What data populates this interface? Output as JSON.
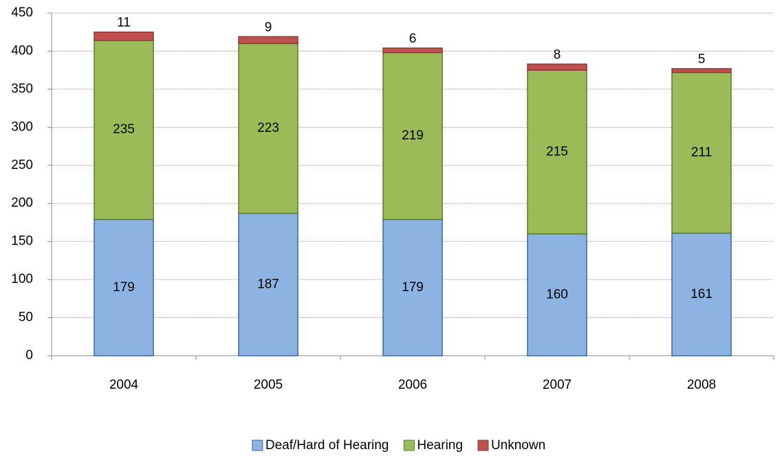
{
  "chart_data": {
    "type": "stacked_bar",
    "categories": [
      "2004",
      "2005",
      "2006",
      "2007",
      "2008"
    ],
    "series": [
      {
        "name": "Deaf/Hard of Hearing",
        "color": "#8db3e2",
        "values": [
          179,
          187,
          179,
          160,
          161
        ]
      },
      {
        "name": "Hearing",
        "color": "#9bbb59",
        "values": [
          235,
          223,
          219,
          215,
          211
        ]
      },
      {
        "name": "Unknown",
        "color": "#c0504d",
        "values": [
          11,
          9,
          6,
          8,
          5
        ]
      }
    ],
    "ylim": [
      0,
      450
    ],
    "yticks": [
      0,
      50,
      100,
      150,
      200,
      250,
      300,
      350,
      400,
      450
    ],
    "grid": true,
    "legend": "bottom"
  }
}
